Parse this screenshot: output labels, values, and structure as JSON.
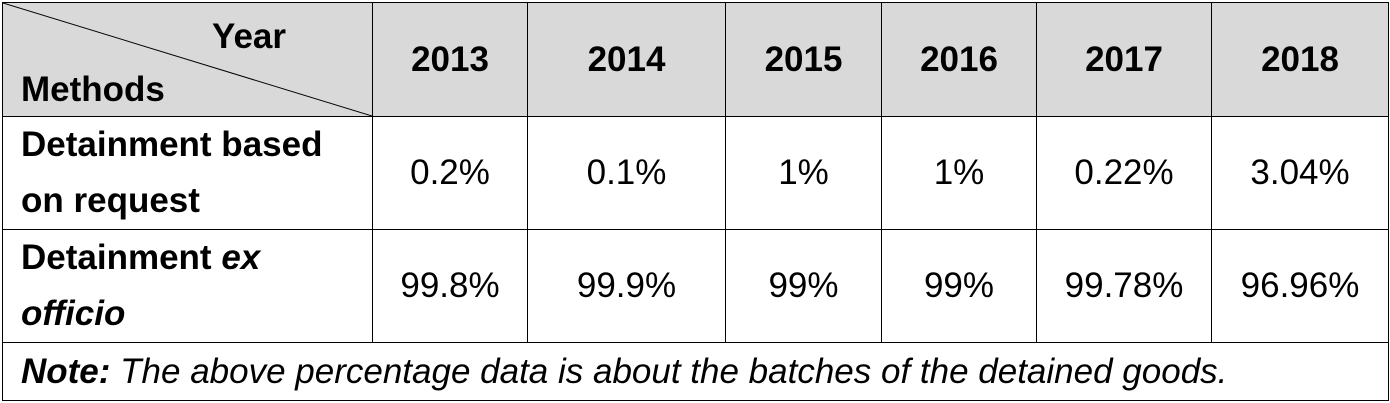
{
  "table": {
    "corner": {
      "column_header_label": "Year",
      "row_header_label": "Methods"
    },
    "years": [
      "2013",
      "2014",
      "2015",
      "2016",
      "2017",
      "2018"
    ],
    "rows": [
      {
        "label_line1": "Detainment based",
        "label_line2": "on request",
        "values": [
          "0.2%",
          "0.1%",
          "1%",
          "1%",
          "0.22%",
          "3.04%"
        ]
      },
      {
        "label_line1_normal": "Detainment ",
        "label_line1_italic": "ex",
        "label_line2_italic": "officio",
        "values": [
          "99.8%",
          "99.9%",
          "99%",
          "99%",
          "99.78%",
          "96.96%"
        ]
      }
    ],
    "note": {
      "label": "Note:",
      "text": " The above percentage data is about the batches of the detained goods."
    }
  },
  "colors": {
    "header_background": "#d9d9d9",
    "border": "#000000"
  }
}
